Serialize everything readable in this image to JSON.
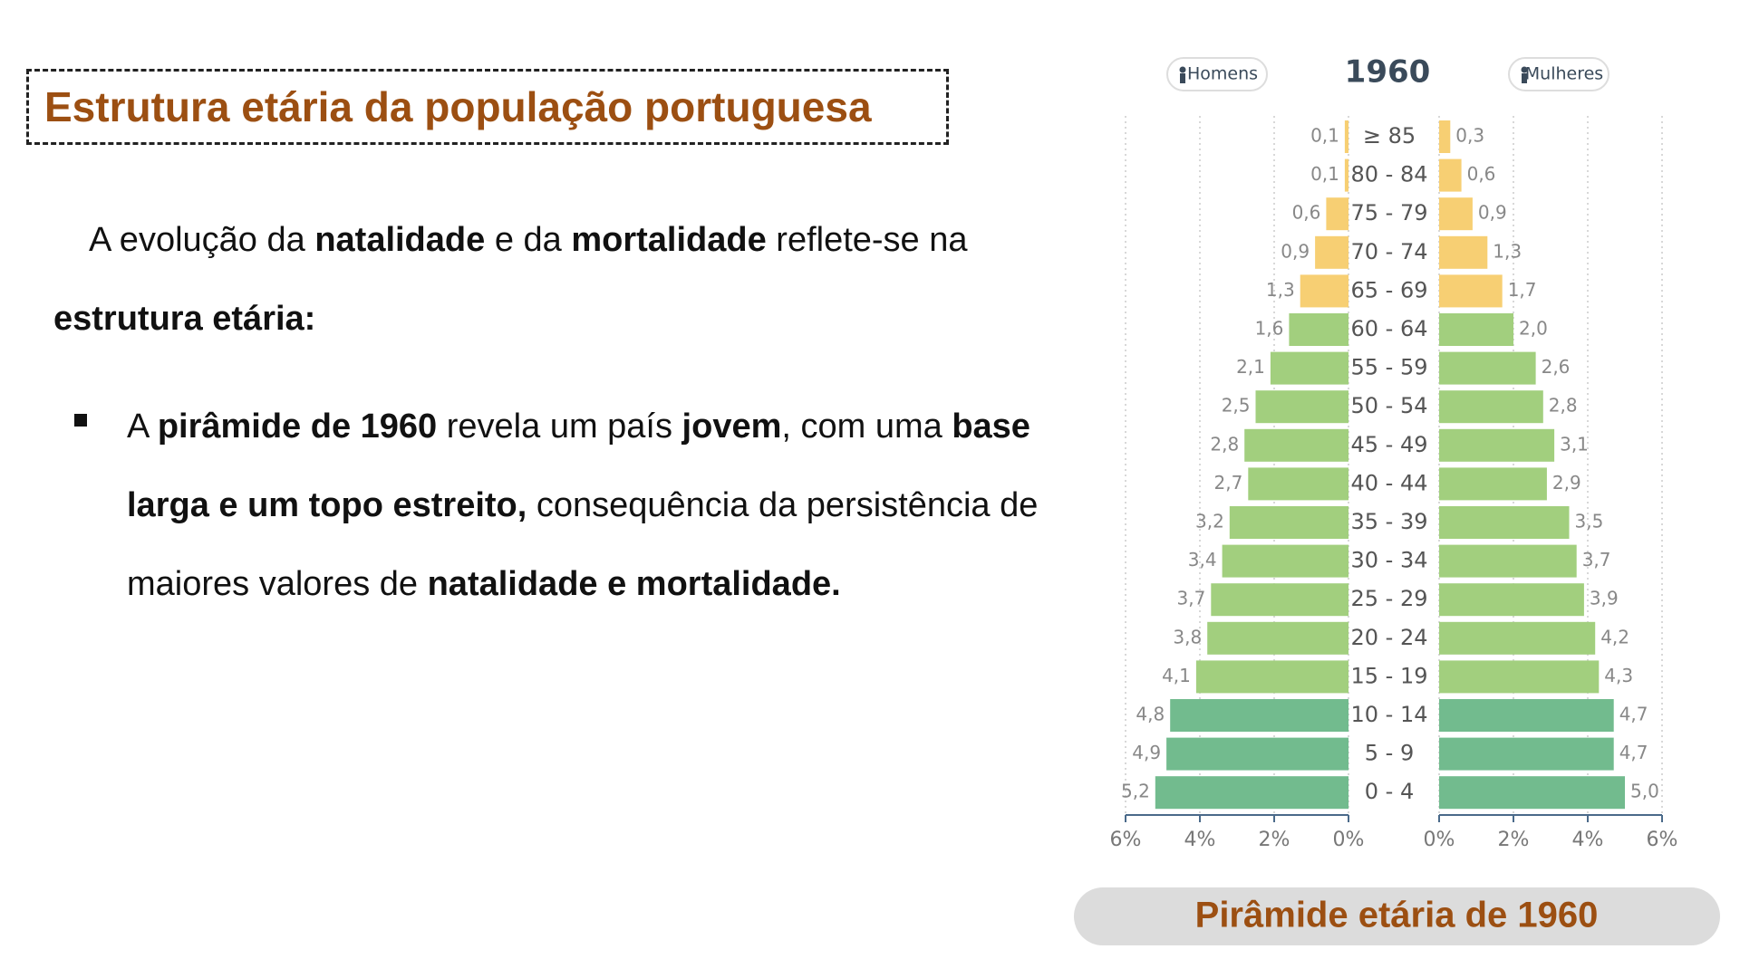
{
  "slide": {
    "title": "Estrutura etária da população portuguesa",
    "intro": [
      {
        "text": "A evolução da ",
        "bold": false
      },
      {
        "text": "natalidade",
        "bold": true
      },
      {
        "text": " e da ",
        "bold": false
      },
      {
        "text": "mortalidade",
        "bold": true
      },
      {
        "text": " reflete-se na ",
        "bold": false
      },
      {
        "text": "estrutura etária:",
        "bold": true
      }
    ],
    "bullet": [
      {
        "text": "A ",
        "bold": false
      },
      {
        "text": "pirâmide de 1960",
        "bold": true
      },
      {
        "text": " revela um país ",
        "bold": false
      },
      {
        "text": "jovem",
        "bold": true
      },
      {
        "text": ", com uma ",
        "bold": false
      },
      {
        "text": "base larga e um topo estreito,",
        "bold": true
      },
      {
        "text": " consequência da persistência de maiores valores de ",
        "bold": false
      },
      {
        "text": "natalidade e mortalidade.",
        "bold": true
      }
    ],
    "caption": "Pirâmide etária de 1960"
  },
  "chart_data": {
    "type": "population_pyramid",
    "title": "1960",
    "categories": [
      "≥ 85",
      "80 - 84",
      "75 - 79",
      "70 - 74",
      "65 - 69",
      "60 - 64",
      "55 - 59",
      "50 - 54",
      "45 - 49",
      "40 - 44",
      "35 - 39",
      "30 - 34",
      "25 - 29",
      "20 - 24",
      "15 - 19",
      "10 - 14",
      "5 - 9",
      "0 - 4"
    ],
    "bar_colors": [
      "#f7cf73",
      "#f7cf73",
      "#f7cf73",
      "#f7cf73",
      "#f7cf73",
      "#a2cf7e",
      "#a2cf7e",
      "#a2cf7e",
      "#a2cf7e",
      "#a2cf7e",
      "#a2cf7e",
      "#a2cf7e",
      "#a2cf7e",
      "#a2cf7e",
      "#a2cf7e",
      "#72bb8e",
      "#72bb8e",
      "#72bb8e"
    ],
    "series": [
      {
        "name": "Homens",
        "side": "left",
        "values": [
          0.1,
          0.1,
          0.6,
          0.9,
          1.3,
          1.6,
          2.1,
          2.5,
          2.8,
          2.7,
          3.2,
          3.4,
          3.7,
          3.8,
          4.1,
          4.8,
          4.9,
          5.2
        ],
        "value_labels": [
          "0,1",
          "0,1",
          "0,6",
          "0,9",
          "1,3",
          "1,6",
          "2,1",
          "2,5",
          "2,8",
          "2,7",
          "3,2",
          "3,4",
          "3,7",
          "3,8",
          "4,1",
          "4,8",
          "4,9",
          "5,2"
        ]
      },
      {
        "name": "Mulheres",
        "side": "right",
        "values": [
          0.3,
          0.6,
          0.9,
          1.3,
          1.7,
          2.0,
          2.6,
          2.8,
          3.1,
          2.9,
          3.5,
          3.7,
          3.9,
          4.2,
          4.3,
          4.7,
          4.7,
          5.0
        ],
        "value_labels": [
          "0,3",
          "0,6",
          "0,9",
          "1,3",
          "1,7",
          "2,0",
          "2,6",
          "2,8",
          "3,1",
          "2,9",
          "3,5",
          "3,7",
          "3,9",
          "4,2",
          "4,3",
          "4,7",
          "4,7",
          "5,0"
        ]
      }
    ],
    "xlim": [
      0,
      6
    ],
    "xticks": [
      {
        "value": 0,
        "label": "0%"
      },
      {
        "value": 2,
        "label": "2%"
      },
      {
        "value": 4,
        "label": "4%"
      },
      {
        "value": 6,
        "label": "6%"
      }
    ],
    "grid": true
  }
}
